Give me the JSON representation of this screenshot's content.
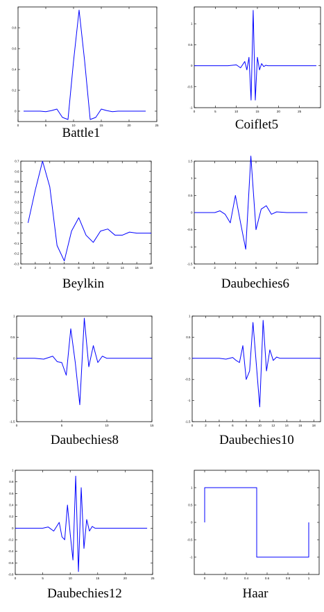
{
  "figure": {
    "line_color": "#0000ff",
    "axis_color": "#000000"
  },
  "chart_data": [
    {
      "type": "line",
      "title": "Battle1",
      "xlim": [
        0,
        25
      ],
      "ylim": [
        -0.1,
        1.0
      ],
      "xticks": [
        "0",
        "5",
        "10",
        "15",
        "20",
        "25"
      ],
      "yticks": [
        "0",
        "0.2",
        "0.4",
        "0.6",
        "0.8"
      ],
      "ytick_values": [
        0,
        0.2,
        0.4,
        0.6,
        0.8
      ],
      "x": [
        1,
        2,
        3,
        4,
        5,
        6,
        7,
        8,
        9,
        10,
        11,
        12,
        13,
        14,
        15,
        16,
        17,
        18,
        19,
        20,
        21,
        22,
        23
      ],
      "y": [
        0.0,
        0.0,
        0.0,
        0.0,
        -0.005,
        0.005,
        0.02,
        -0.06,
        -0.08,
        0.48,
        0.97,
        0.48,
        -0.08,
        -0.06,
        0.02,
        0.005,
        -0.005,
        0.0,
        0.0,
        0.0,
        0.0,
        0.0,
        0.0
      ]
    },
    {
      "type": "line",
      "title": "Coiflet5",
      "xlim": [
        0,
        30
      ],
      "ylim": [
        -1.0,
        1.4
      ],
      "xticks": [
        "0",
        "5",
        "10",
        "15",
        "20",
        "25"
      ],
      "yticks": [
        "-1",
        "-0.5",
        "0",
        "0.5",
        "1"
      ],
      "ytick_values": [
        -1,
        -0.5,
        0,
        0.5,
        1
      ],
      "x": [
        0,
        4,
        8,
        10,
        11,
        12,
        12.5,
        13,
        13.5,
        14,
        14.5,
        15,
        15.5,
        16,
        16.5,
        17,
        17.5,
        18,
        19,
        20,
        24,
        29
      ],
      "y": [
        0.0,
        0.0,
        0.0,
        0.02,
        -0.05,
        0.1,
        -0.1,
        0.2,
        -0.82,
        1.32,
        -0.82,
        0.2,
        -0.1,
        0.05,
        -0.02,
        0.01,
        0.0,
        0.0,
        0.0,
        0.0,
        0.0,
        0.0
      ]
    },
    {
      "type": "line",
      "title": "Beylkin",
      "xlim": [
        0,
        18
      ],
      "ylim": [
        -0.3,
        0.7
      ],
      "xticks": [
        "0",
        "2",
        "4",
        "6",
        "8",
        "10",
        "12",
        "14",
        "16",
        "18"
      ],
      "yticks": [
        "-0.3",
        "-0.2",
        "-0.1",
        "0",
        "0.1",
        "0.2",
        "0.3",
        "0.4",
        "0.5",
        "0.6",
        "0.7"
      ],
      "ytick_values": [
        -0.3,
        -0.2,
        -0.1,
        0,
        0.1,
        0.2,
        0.3,
        0.4,
        0.5,
        0.6,
        0.7
      ],
      "x": [
        1,
        2,
        3,
        4,
        5,
        6,
        7,
        8,
        9,
        10,
        11,
        12,
        13,
        14,
        15,
        16,
        17,
        18
      ],
      "y": [
        0.1,
        0.42,
        0.7,
        0.45,
        -0.12,
        -0.27,
        0.02,
        0.15,
        -0.02,
        -0.09,
        0.02,
        0.04,
        -0.02,
        -0.02,
        0.01,
        0.0,
        0.0,
        0.0
      ]
    },
    {
      "type": "line",
      "title": "Daubechies6",
      "xlim": [
        0,
        12
      ],
      "ylim": [
        -1.5,
        1.5
      ],
      "xticks": [
        "0",
        "2",
        "4",
        "6",
        "8",
        "10"
      ],
      "yticks": [
        "-1.5",
        "-1",
        "-0.5",
        "0",
        "0.5",
        "1",
        "1.5"
      ],
      "ytick_values": [
        -1.5,
        -1,
        -0.5,
        0,
        0.5,
        1,
        1.5
      ],
      "x": [
        0,
        1,
        2,
        2.5,
        3,
        3.5,
        4,
        4.5,
        5,
        5.5,
        6,
        6.5,
        7,
        7.5,
        8,
        9,
        10,
        11
      ],
      "y": [
        0.0,
        0.0,
        0.0,
        0.05,
        -0.05,
        -0.3,
        0.5,
        -0.3,
        -1.07,
        1.65,
        -0.5,
        0.1,
        0.2,
        -0.05,
        0.02,
        0.0,
        0.0,
        0.0
      ]
    },
    {
      "type": "line",
      "title": "Daubechies8",
      "xlim": [
        0,
        15
      ],
      "ylim": [
        -1.5,
        1.0
      ],
      "xticks": [
        "0",
        "5",
        "10",
        "15"
      ],
      "yticks": [
        "-1.5",
        "-1",
        "-0.5",
        "0",
        "0.5",
        "1"
      ],
      "ytick_values": [
        -1.5,
        -1,
        -0.5,
        0,
        0.5,
        1
      ],
      "x": [
        0,
        2,
        3,
        4,
        4.5,
        5,
        5.5,
        6,
        6.5,
        7,
        7.5,
        8,
        8.5,
        9,
        9.5,
        10,
        11,
        12,
        15
      ],
      "y": [
        0.0,
        0.0,
        -0.02,
        0.05,
        -0.08,
        -0.1,
        -0.4,
        0.7,
        -0.1,
        -1.1,
        0.95,
        -0.2,
        0.3,
        -0.1,
        0.05,
        0.0,
        0.0,
        0.0,
        0.0
      ]
    },
    {
      "type": "line",
      "title": "Daubechies10",
      "xlim": [
        0,
        19
      ],
      "ylim": [
        -1.5,
        1.0
      ],
      "xticks": [
        "0",
        "2",
        "4",
        "6",
        "8",
        "10",
        "12",
        "14",
        "16",
        "18"
      ],
      "yticks": [
        "-1.5",
        "-1",
        "-0.5",
        "0",
        "0.5",
        "1"
      ],
      "ytick_values": [
        -1.5,
        -1,
        -0.5,
        0,
        0.5,
        1
      ],
      "x": [
        0,
        2,
        4,
        5,
        6,
        6.5,
        7,
        7.5,
        8,
        8.5,
        9,
        9.5,
        10,
        10.5,
        11,
        11.5,
        12,
        12.5,
        13,
        14,
        16,
        19
      ],
      "y": [
        0.0,
        0.0,
        0.0,
        -0.02,
        0.02,
        -0.05,
        -0.1,
        0.3,
        -0.5,
        -0.3,
        0.85,
        -0.15,
        -1.15,
        0.9,
        -0.3,
        0.2,
        -0.05,
        0.03,
        0.0,
        0.0,
        0.0,
        0.0
      ]
    },
    {
      "type": "line",
      "title": "Daubechies12",
      "xlim": [
        0,
        25
      ],
      "ylim": [
        -0.8,
        1.0
      ],
      "xticks": [
        "0",
        "5",
        "10",
        "15",
        "20",
        "25"
      ],
      "yticks": [
        "-0.8",
        "-0.6",
        "-0.4",
        "-0.2",
        "0",
        "0.2",
        "0.4",
        "0.6",
        "0.8",
        "1"
      ],
      "ytick_values": [
        -0.8,
        -0.6,
        -0.4,
        -0.2,
        0,
        0.2,
        0.4,
        0.6,
        0.8,
        1
      ],
      "x": [
        0,
        3,
        5,
        6,
        7,
        8,
        8.5,
        9,
        9.5,
        10,
        10.5,
        11,
        11.5,
        12,
        12.5,
        13,
        13.5,
        14,
        14.5,
        15,
        16,
        20,
        24
      ],
      "y": [
        0.0,
        0.0,
        0.0,
        0.02,
        -0.05,
        0.1,
        -0.15,
        -0.2,
        0.4,
        -0.1,
        -0.55,
        0.9,
        -0.75,
        0.7,
        -0.35,
        0.15,
        -0.05,
        0.03,
        0.0,
        0.0,
        0.0,
        0.0,
        0.0
      ]
    },
    {
      "type": "line",
      "title": "Haar",
      "xlim": [
        -0.1,
        1.1
      ],
      "ylim": [
        -1.5,
        1.5
      ],
      "xticks": [
        "0",
        "0.2",
        "0.4",
        "0.6",
        "0.8",
        "1"
      ],
      "xtick_values": [
        0,
        0.2,
        0.4,
        0.6,
        0.8,
        1
      ],
      "yticks": [
        "-1",
        "-0.5",
        "0",
        "0.5",
        "1"
      ],
      "ytick_values": [
        -1,
        -0.5,
        0,
        0.5,
        1
      ],
      "x": [
        0,
        0,
        0.5,
        0.5,
        1,
        1
      ],
      "y": [
        0,
        1,
        1,
        -1,
        -1,
        0
      ]
    }
  ]
}
